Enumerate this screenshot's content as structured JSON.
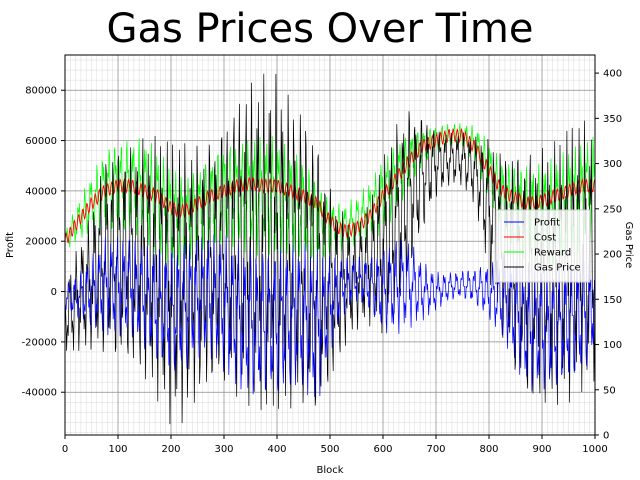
{
  "chart_data": {
    "type": "line",
    "title": "Gas Prices Over Time",
    "xlabel": "Block",
    "ylabel": "Profit",
    "y2label": "Gas Price",
    "xlim": [
      0,
      1000
    ],
    "ylim": [
      -57000,
      94000
    ],
    "y2lim": [
      0,
      420
    ],
    "x_ticks": [
      0,
      100,
      200,
      300,
      400,
      500,
      600,
      700,
      800,
      900,
      1000
    ],
    "x_tick_labels": [
      "0",
      "100",
      "200",
      "300",
      "400",
      "500",
      "600",
      "700",
      "800",
      "900",
      "1000"
    ],
    "y_ticks": [
      -40000,
      -20000,
      0,
      20000,
      40000,
      60000,
      80000
    ],
    "y_tick_labels": [
      "-40000",
      "-20000",
      "0",
      "20000",
      "40000",
      "60000",
      "80000"
    ],
    "y2_ticks": [
      0,
      50,
      100,
      150,
      200,
      250,
      300,
      350,
      400
    ],
    "y2_tick_labels": [
      "0",
      "50",
      "100",
      "150",
      "200",
      "250",
      "300",
      "350",
      "400"
    ],
    "grid": true,
    "minor_grid": true,
    "legend_position": "center-right",
    "colors": {
      "Profit": "#0000ff",
      "Cost": "#ff0000",
      "Reward": "#00ff00",
      "Gas Price": "#000000"
    },
    "series": [
      {
        "name": "Profit",
        "axis": "left",
        "x": [
          0,
          25,
          50,
          75,
          100,
          125,
          150,
          175,
          200,
          225,
          250,
          275,
          300,
          325,
          350,
          375,
          400,
          425,
          450,
          475,
          500,
          525,
          550,
          575,
          600,
          625,
          650,
          675,
          700,
          725,
          750,
          775,
          800,
          825,
          850,
          875,
          900,
          925,
          950,
          975,
          1000
        ],
        "center": [
          -2000,
          -2000,
          0,
          2000,
          2000,
          2000,
          -2000,
          -5000,
          -8000,
          -6000,
          -2000,
          -2000,
          -5000,
          -10000,
          -12000,
          -12000,
          -12000,
          -10000,
          -10000,
          -15000,
          -5000,
          2000,
          5000,
          3000,
          0,
          2000,
          3000,
          0,
          0,
          2000,
          3000,
          2000,
          0,
          -3000,
          -8000,
          -15000,
          -15000,
          -15000,
          -12000,
          -10000,
          -5000
        ],
        "amplitude": [
          6000,
          10000,
          15000,
          20000,
          20000,
          20000,
          22000,
          25000,
          28000,
          28000,
          25000,
          25000,
          28000,
          30000,
          32000,
          32000,
          32000,
          30000,
          30000,
          32000,
          20000,
          12000,
          10000,
          12000,
          18000,
          20000,
          18000,
          12000,
          8000,
          6000,
          6000,
          8000,
          12000,
          16000,
          22000,
          25000,
          25000,
          25000,
          25000,
          25000,
          20000
        ]
      },
      {
        "name": "Cost",
        "axis": "left",
        "x": [
          0,
          25,
          50,
          75,
          100,
          125,
          150,
          175,
          200,
          225,
          250,
          275,
          300,
          325,
          350,
          375,
          400,
          425,
          450,
          475,
          500,
          525,
          550,
          575,
          600,
          625,
          650,
          675,
          700,
          725,
          750,
          775,
          800,
          825,
          850,
          875,
          900,
          925,
          950,
          975,
          1000
        ],
        "values": [
          20000,
          28000,
          35000,
          40000,
          42000,
          42000,
          40000,
          38000,
          33000,
          32000,
          35000,
          38000,
          40000,
          42000,
          43000,
          42000,
          42000,
          40000,
          38000,
          35000,
          28000,
          24000,
          25000,
          30000,
          38000,
          45000,
          52000,
          58000,
          60000,
          62000,
          62000,
          57000,
          48000,
          40000,
          37000,
          35000,
          36000,
          38000,
          40000,
          42000,
          42000
        ],
        "amplitude": 2500
      },
      {
        "name": "Reward",
        "axis": "left",
        "x": [
          0,
          25,
          50,
          75,
          100,
          125,
          150,
          175,
          200,
          225,
          250,
          275,
          300,
          325,
          350,
          375,
          400,
          425,
          450,
          475,
          500,
          525,
          550,
          575,
          600,
          625,
          650,
          675,
          700,
          725,
          750,
          775,
          800,
          825,
          850,
          875,
          900,
          925,
          950,
          975,
          1000
        ],
        "center": [
          20000,
          28000,
          35000,
          40000,
          42000,
          42000,
          40000,
          35000,
          30000,
          28000,
          32000,
          35000,
          38000,
          38000,
          38000,
          38000,
          38000,
          35000,
          33000,
          28000,
          25000,
          25000,
          28000,
          32000,
          38000,
          45000,
          52000,
          57000,
          60000,
          62000,
          62000,
          58000,
          48000,
          38000,
          33000,
          30000,
          30000,
          32000,
          35000,
          38000,
          42000
        ],
        "amplitude": [
          4000,
          8000,
          12000,
          18000,
          20000,
          20000,
          22000,
          22000,
          20000,
          18000,
          18000,
          20000,
          22000,
          22000,
          24000,
          24000,
          24000,
          22000,
          22000,
          18000,
          12000,
          10000,
          10000,
          12000,
          15000,
          15000,
          12000,
          8000,
          6000,
          5000,
          5000,
          8000,
          12000,
          15000,
          20000,
          22000,
          22000,
          22000,
          22000,
          22000,
          22000
        ]
      },
      {
        "name": "Gas Price",
        "axis": "right",
        "x": [
          0,
          25,
          50,
          75,
          100,
          125,
          150,
          175,
          200,
          225,
          250,
          275,
          300,
          325,
          350,
          375,
          400,
          425,
          450,
          475,
          500,
          525,
          550,
          575,
          600,
          625,
          650,
          675,
          700,
          725,
          750,
          775,
          800,
          825,
          850,
          875,
          900,
          925,
          950,
          975,
          1000
        ],
        "center": [
          130,
          150,
          170,
          200,
          200,
          200,
          195,
          185,
          170,
          170,
          180,
          190,
          200,
          205,
          210,
          210,
          210,
          200,
          195,
          175,
          165,
          170,
          175,
          190,
          210,
          240,
          270,
          290,
          300,
          305,
          305,
          290,
          250,
          210,
          190,
          175,
          175,
          180,
          190,
          200,
          200
        ],
        "amplitude": [
          40,
          60,
          80,
          120,
          130,
          130,
          140,
          150,
          160,
          160,
          150,
          150,
          160,
          175,
          185,
          190,
          190,
          180,
          175,
          170,
          120,
          80,
          60,
          70,
          100,
          110,
          100,
          70,
          40,
          30,
          30,
          40,
          80,
          110,
          140,
          150,
          150,
          150,
          155,
          155,
          150
        ]
      }
    ]
  }
}
